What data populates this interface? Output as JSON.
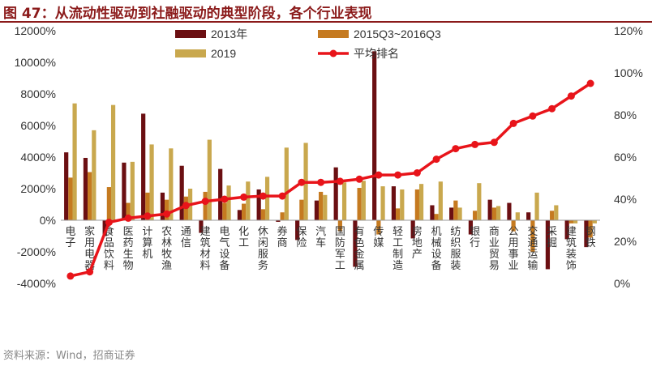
{
  "header": {
    "title": "图 47：从流动性驱动到社融驱动的典型阶段，各个行业表现"
  },
  "footer": {
    "source": "资料来源：Wind，招商证券"
  },
  "colors": {
    "s2013": "#6b0f12",
    "s2015": "#c57a20",
    "s2019": "#c9a84e",
    "line": "#e8141a",
    "title": "#8b1a1a",
    "axis_text": "#333333"
  },
  "chart_data": {
    "type": "bar",
    "categories": [
      "电子",
      "家用电器",
      "食品饮料",
      "医药生物",
      "计算机",
      "农林牧渔",
      "通信",
      "建筑材料",
      "电气设备",
      "化工",
      "休闲服务",
      "券商",
      "保险",
      "汽车",
      "国防军工",
      "有色金属",
      "传媒",
      "轻工制造",
      "房地产",
      "机械设备",
      "纺织服装",
      "银行",
      "商业贸易",
      "公用事业",
      "交通运输",
      "采掘",
      "建筑装饰",
      "钢铁"
    ],
    "series": [
      {
        "name": "2013年",
        "axis": "left",
        "values": [
          4300,
          3950,
          -1000,
          3650,
          6750,
          1750,
          3450,
          -800,
          3250,
          650,
          1950,
          -100,
          -1250,
          1250,
          3350,
          -2950,
          10700,
          2150,
          -1150,
          950,
          800,
          -900,
          1300,
          1100,
          500,
          -3100,
          -1200,
          -1700
        ]
      },
      {
        "name": "2015Q3~2016Q3",
        "axis": "left",
        "values": [
          2700,
          3050,
          2100,
          1100,
          1750,
          1300,
          1500,
          1800,
          1100,
          1050,
          700,
          500,
          1300,
          1800,
          -700,
          2050,
          -900,
          750,
          1950,
          400,
          1250,
          600,
          800,
          -700,
          -2000,
          600,
          -200,
          -1100
        ]
      },
      {
        "name": "2019",
        "axis": "left",
        "values": [
          7400,
          5700,
          7300,
          3700,
          4800,
          4550,
          2000,
          5100,
          2200,
          2450,
          2750,
          4600,
          4900,
          1600,
          2400,
          2500,
          2150,
          1950,
          2300,
          2450,
          800,
          2350,
          900,
          500,
          1750,
          950,
          -200,
          -200
        ]
      },
      {
        "name": "平均排名",
        "type": "line",
        "axis": "right",
        "values": [
          3.5,
          5.5,
          29,
          31,
          32,
          33,
          37,
          39,
          40,
          41,
          41.5,
          41.5,
          48,
          48,
          48.5,
          49.5,
          51.5,
          51.5,
          52.5,
          59,
          64,
          66,
          67,
          76,
          79.5,
          83,
          89,
          95
        ]
      }
    ],
    "ylim": [
      -4000,
      12000
    ],
    "yticks": [
      "-4000%",
      "-2000%",
      "0%",
      "2000%",
      "4000%",
      "6000%",
      "8000%",
      "10000%",
      "12000%"
    ],
    "y2lim": [
      0,
      120
    ],
    "y2ticks": [
      "0%",
      "20%",
      "40%",
      "60%",
      "80%",
      "100%",
      "120%"
    ],
    "legend": "top"
  }
}
